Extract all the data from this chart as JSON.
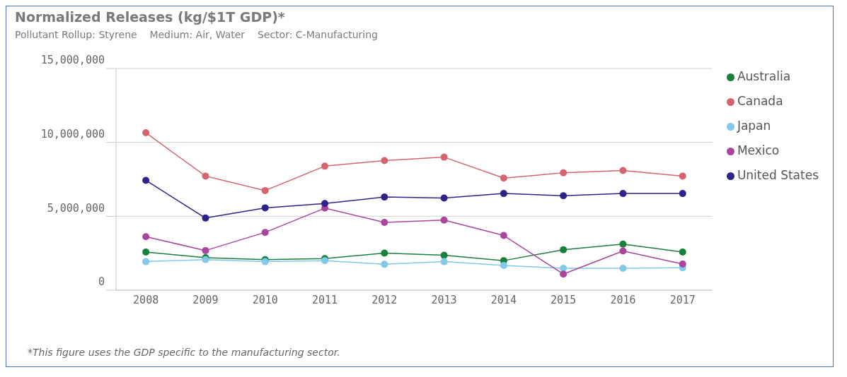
{
  "chart_data": {
    "type": "line",
    "title": "Normalized Releases (kg/$1T GDP)*",
    "subtitle": "Pollutant Rollup: Styrene    Medium: Air, Water    Sector: C-Manufacturing",
    "categories": [
      "2008",
      "2009",
      "2010",
      "2011",
      "2012",
      "2013",
      "2014",
      "2015",
      "2016",
      "2017"
    ],
    "series": [
      {
        "name": "Australia",
        "color": "#17803a",
        "values": [
          2580000,
          2200000,
          2070000,
          2140000,
          2510000,
          2360000,
          2000000,
          2740000,
          3120000,
          2580000
        ]
      },
      {
        "name": "Canada",
        "color": "#d4656f",
        "values": [
          10650000,
          7720000,
          6740000,
          8390000,
          8770000,
          9000000,
          7580000,
          7940000,
          8100000,
          7720000
        ]
      },
      {
        "name": "Japan",
        "color": "#80c8ec",
        "values": [
          1930000,
          2070000,
          1930000,
          2000000,
          1750000,
          1930000,
          1670000,
          1480000,
          1480000,
          1520000
        ]
      },
      {
        "name": "Mexico",
        "color": "#a8459d",
        "values": [
          3620000,
          2680000,
          3910000,
          5550000,
          4590000,
          4740000,
          3700000,
          1090000,
          2650000,
          1770000
        ]
      },
      {
        "name": "United States",
        "color": "#2e2388",
        "values": [
          7430000,
          4880000,
          5570000,
          5860000,
          6300000,
          6230000,
          6540000,
          6390000,
          6540000,
          6540000
        ]
      }
    ],
    "ylim": [
      0,
      15000000
    ],
    "yticks": [
      0,
      {
        "value": 5000000,
        "label": "5,000,000"
      },
      {
        "value": 10000000,
        "label": "10,000,000"
      },
      {
        "value": 15000000,
        "label": "15,000,000"
      }
    ],
    "grid": "y",
    "legend": "right",
    "marker": "circle",
    "line_style": "solid",
    "annotations": [
      "*This figure uses the GDP specific to the manufacturing sector."
    ]
  }
}
